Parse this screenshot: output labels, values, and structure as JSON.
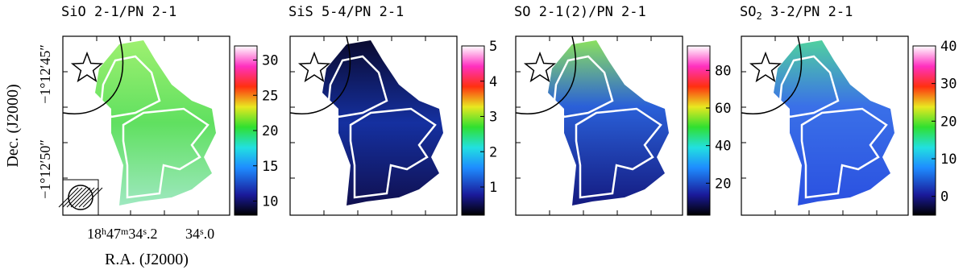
{
  "figure": {
    "panels": [
      {
        "title": [
          {
            "text": "SiO 2-1/PN 2-1"
          }
        ],
        "colorbar": {
          "range": [
            8,
            32
          ],
          "ticks": [
            10,
            15,
            20,
            25,
            30
          ]
        }
      },
      {
        "title": [
          {
            "text": "SiS 5-4/PN 2-1"
          }
        ],
        "colorbar": {
          "range": [
            0.2,
            5
          ],
          "ticks": [
            1,
            2,
            3,
            4,
            5
          ]
        }
      },
      {
        "title": [
          {
            "text": "SO 2-1(2)/PN 2-1"
          }
        ],
        "colorbar": {
          "range": [
            3,
            93
          ],
          "ticks": [
            20,
            40,
            60,
            80
          ]
        }
      },
      {
        "title": [
          {
            "text": "SO"
          },
          {
            "sub": "2"
          },
          {
            "text": " 3-2/PN 2-1"
          }
        ],
        "colorbar": {
          "range": [
            -5,
            40
          ],
          "ticks": [
            0,
            10,
            20,
            30,
            40
          ]
        }
      }
    ],
    "y_label": "Dec. (J2000)",
    "x_label": "R.A. (J2000)",
    "dec_ticks": [
      "−1°12′45″",
      "−1°12′50″"
    ],
    "ra_ticks": [
      [
        {
          "text": "18"
        },
        {
          "sup": "h"
        },
        {
          "text": "47"
        },
        {
          "sup": "m"
        },
        {
          "text": "34"
        },
        {
          "sup": "s"
        },
        {
          "text": ".2"
        }
      ],
      [
        {
          "text": "34"
        },
        {
          "sup": "s"
        },
        {
          "text": ".0"
        }
      ]
    ]
  }
}
